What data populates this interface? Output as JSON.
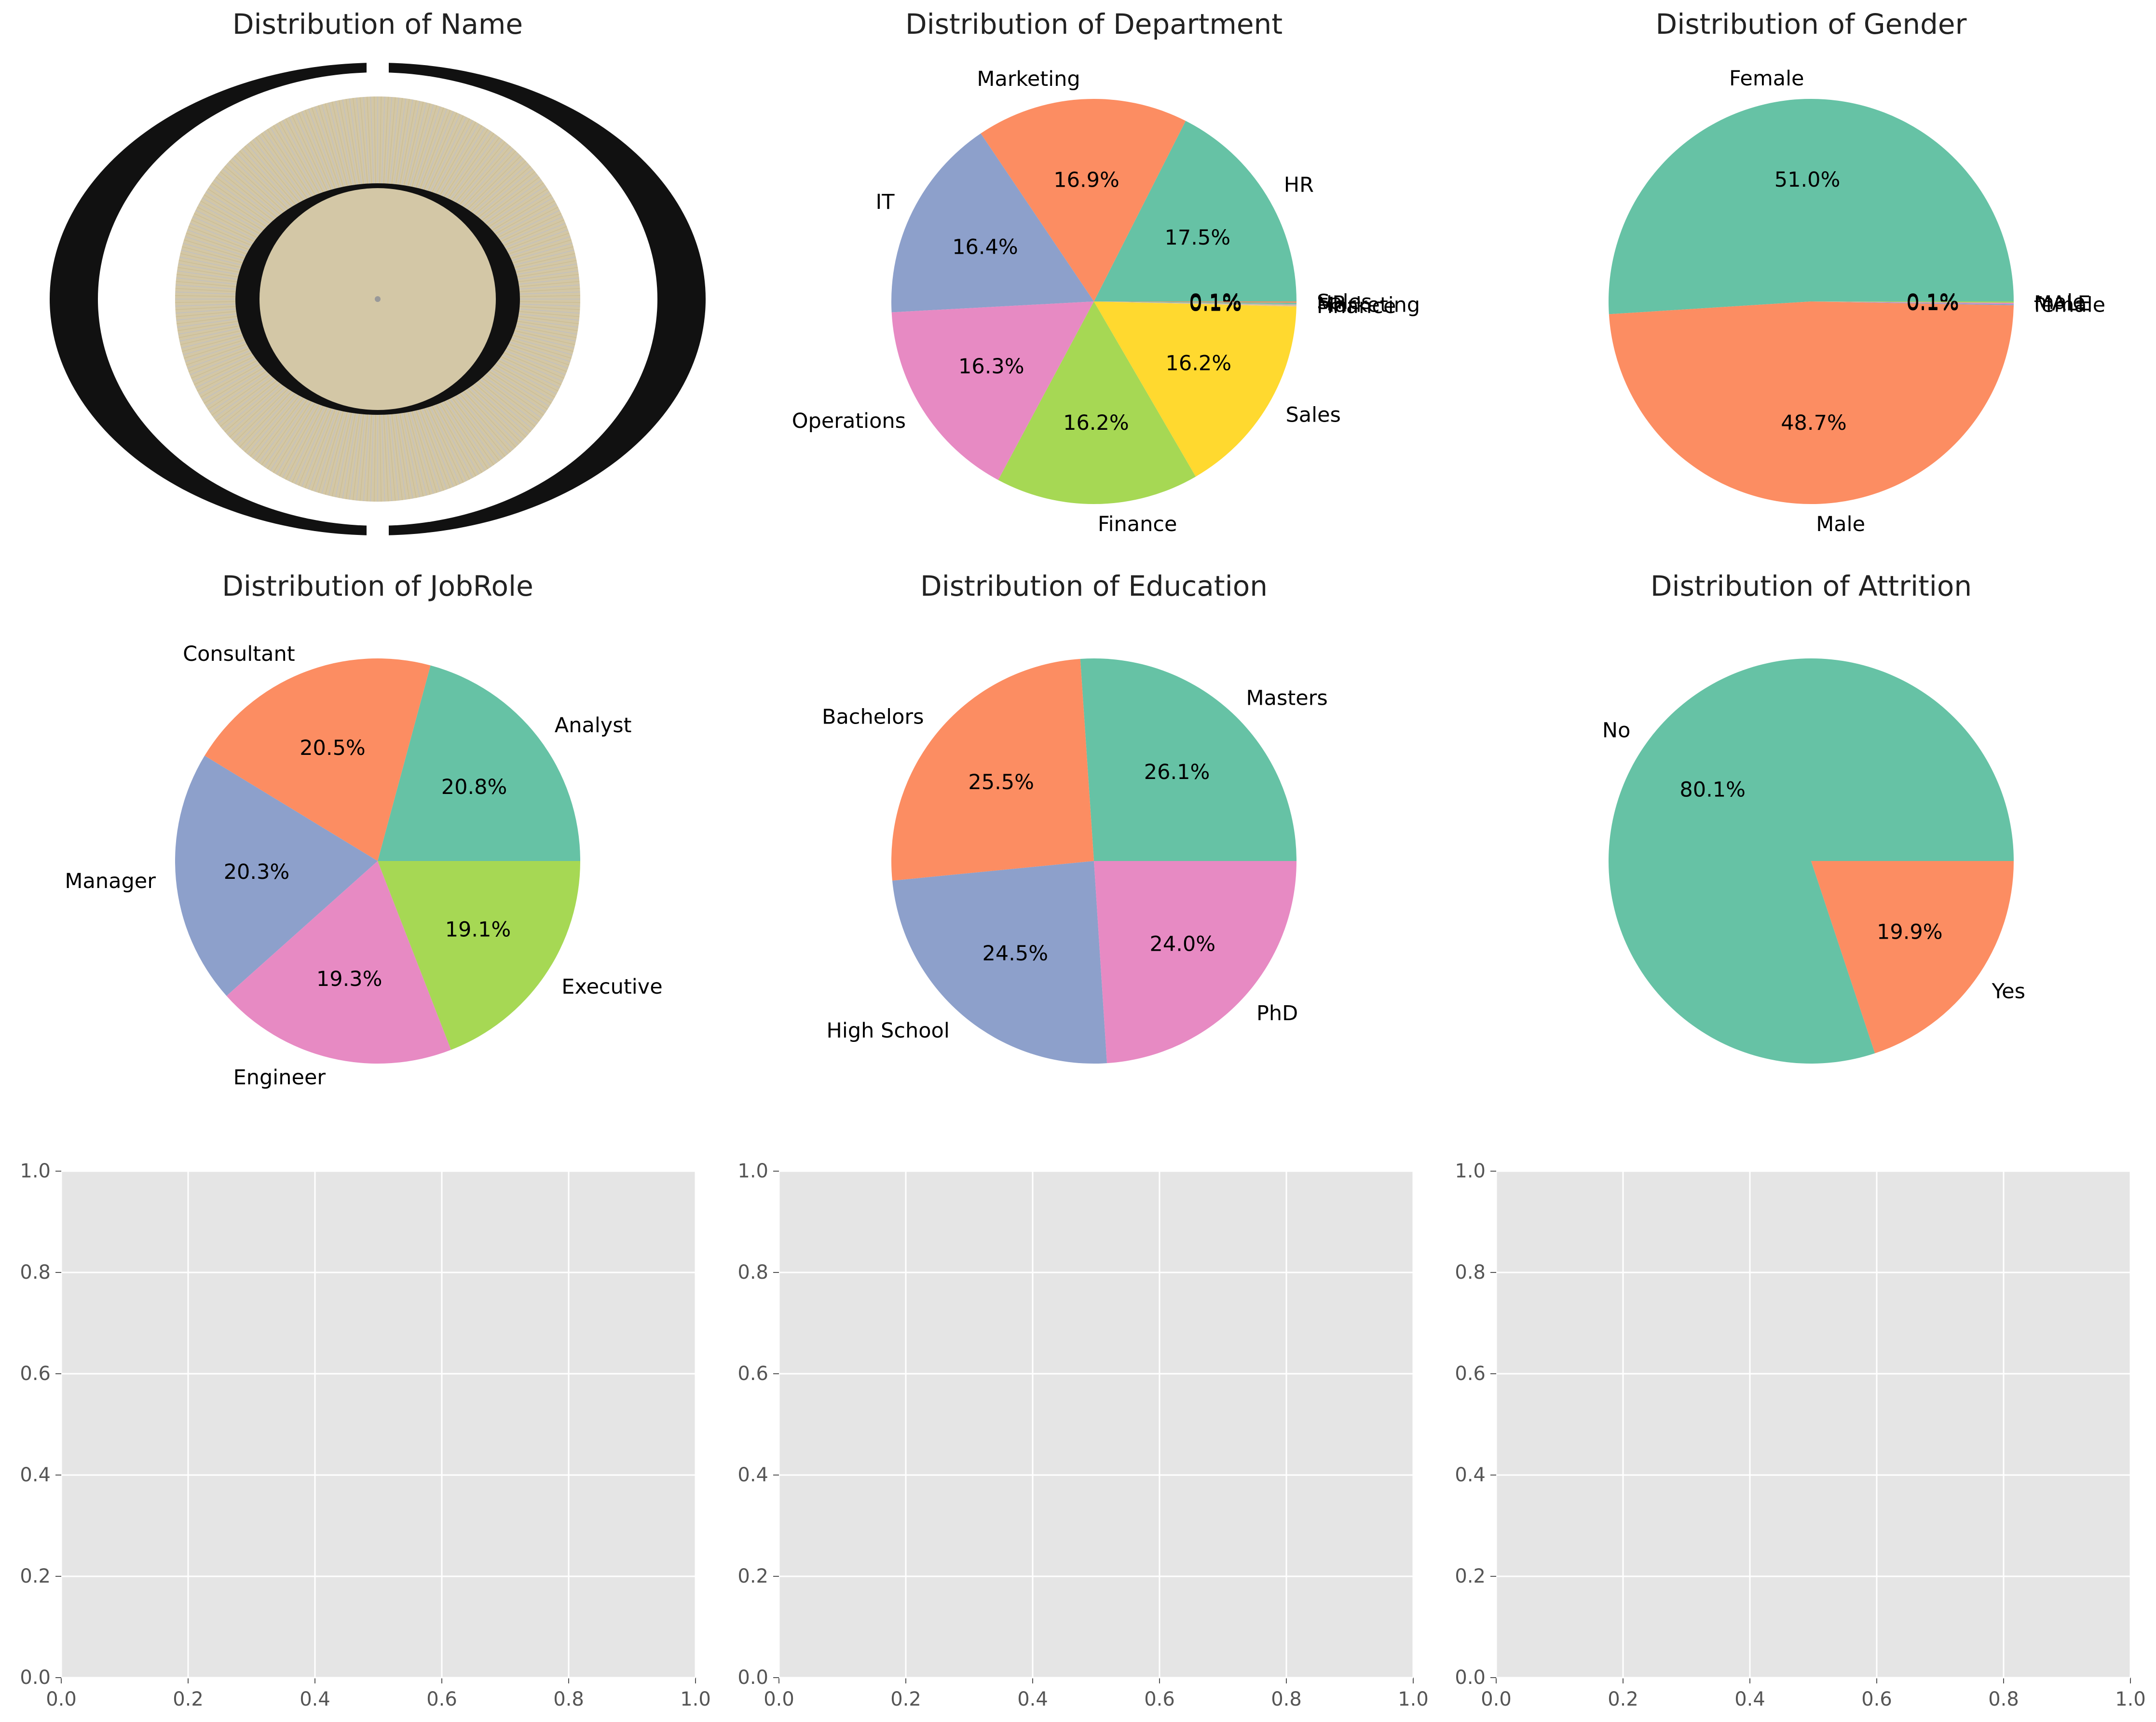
{
  "chart_data": [
    {
      "type": "pie",
      "title": "Distribution of Name",
      "categories": [],
      "values": [],
      "note_visible": "hundreds of overlapping unreadable labels"
    },
    {
      "type": "pie",
      "title": "Distribution of Department",
      "categories": [
        "HR",
        "Marketing",
        "IT",
        "Operations",
        "Finance",
        "Sales",
        "Finance",
        "Marketing",
        "HR",
        "Sales"
      ],
      "values": [
        17.5,
        16.9,
        16.4,
        16.3,
        16.2,
        16.2,
        0.1,
        0.1,
        0.1,
        0.1
      ],
      "labels": [
        "17.5%",
        "16.9%",
        "16.4%",
        "16.3%",
        "16.2%",
        "16.2%",
        "0.1%",
        "0.1%",
        "0.1%",
        "0.1%"
      ],
      "colors": [
        "#66c2a5",
        "#fc8d62",
        "#8da0cb",
        "#e78ac3",
        "#a6d854",
        "#ffd92f",
        "#e5c494",
        "#b3b3b3",
        "#66c2a5",
        "#fc8d62"
      ]
    },
    {
      "type": "pie",
      "title": "Distribution of Gender",
      "categories": [
        "Female",
        "Male",
        "female",
        "MALE",
        "male"
      ],
      "values": [
        51.0,
        48.7,
        0.1,
        0.1,
        0.1
      ],
      "labels": [
        "51.0%",
        "48.7%",
        "0.1%",
        "0.1%",
        "0.1%"
      ],
      "colors": [
        "#66c2a5",
        "#fc8d62",
        "#8da0cb",
        "#e78ac3",
        "#a6d854"
      ]
    },
    {
      "type": "pie",
      "title": "Distribution of JobRole",
      "categories": [
        "Analyst",
        "Consultant",
        "Manager",
        "Engineer",
        "Executive"
      ],
      "values": [
        20.8,
        20.5,
        20.3,
        19.3,
        19.1
      ],
      "labels": [
        "20.8%",
        "20.5%",
        "20.3%",
        "19.3%",
        "19.1%"
      ],
      "colors": [
        "#66c2a5",
        "#fc8d62",
        "#8da0cb",
        "#e78ac3",
        "#a6d854"
      ]
    },
    {
      "type": "pie",
      "title": "Distribution of Education",
      "categories": [
        "Masters",
        "Bachelors",
        "High School",
        "PhD"
      ],
      "values": [
        26.1,
        25.5,
        24.5,
        24.0
      ],
      "labels": [
        "26.1%",
        "25.5%",
        "24.5%",
        "24.0%"
      ],
      "colors": [
        "#66c2a5",
        "#fc8d62",
        "#8da0cb",
        "#e78ac3"
      ]
    },
    {
      "type": "pie",
      "title": "Distribution of Attrition",
      "categories": [
        "No",
        "Yes"
      ],
      "values": [
        80.1,
        19.9
      ],
      "labels": [
        "80.1%",
        "19.9%"
      ],
      "colors": [
        "#66c2a5",
        "#fc8d62"
      ]
    },
    {
      "type": "scatter",
      "title": "",
      "xlim": [
        0,
        1
      ],
      "ylim": [
        0,
        1
      ],
      "xticks": [
        "0.0",
        "0.2",
        "0.4",
        "0.6",
        "0.8",
        "1.0"
      ],
      "yticks": [
        "0.0",
        "0.2",
        "0.4",
        "0.6",
        "0.8",
        "1.0"
      ],
      "grid": true,
      "background": "#e5e5e5"
    },
    {
      "type": "scatter",
      "title": "",
      "xlim": [
        0,
        1
      ],
      "ylim": [
        0,
        1
      ],
      "xticks": [
        "0.0",
        "0.2",
        "0.4",
        "0.6",
        "0.8",
        "1.0"
      ],
      "yticks": [
        "0.0",
        "0.2",
        "0.4",
        "0.6",
        "0.8",
        "1.0"
      ],
      "grid": true,
      "background": "#e5e5e5"
    },
    {
      "type": "scatter",
      "title": "",
      "xlim": [
        0,
        1
      ],
      "ylim": [
        0,
        1
      ],
      "xticks": [
        "0.0",
        "0.2",
        "0.4",
        "0.6",
        "0.8",
        "1.0"
      ],
      "yticks": [
        "0.0",
        "0.2",
        "0.4",
        "0.6",
        "0.8",
        "1.0"
      ],
      "grid": true,
      "background": "#e5e5e5"
    }
  ]
}
